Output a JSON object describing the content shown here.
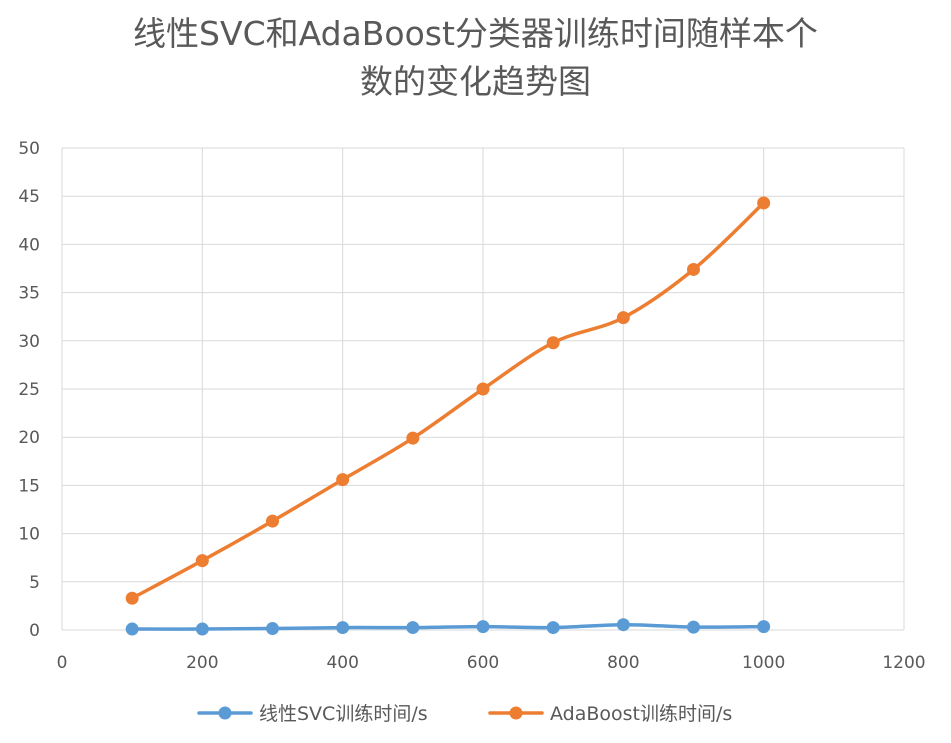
{
  "chart_data": {
    "type": "line",
    "title_lines": [
      "线性SVC和AdaBoost分类器训练时间随样本个",
      "数的变化趋势图"
    ],
    "xlabel": "",
    "ylabel": "",
    "xlim": [
      0,
      1200
    ],
    "ylim": [
      0,
      50
    ],
    "x_ticks": [
      0,
      200,
      400,
      600,
      800,
      1000,
      1200
    ],
    "y_ticks": [
      0,
      5,
      10,
      15,
      20,
      25,
      30,
      35,
      40,
      45,
      50
    ],
    "grid": true,
    "legend_position": "bottom",
    "series": [
      {
        "name": "线性SVC训练时间/s",
        "color": "#5B9BD5",
        "x": [
          100,
          200,
          300,
          400,
          500,
          600,
          700,
          800,
          900,
          1000
        ],
        "y": [
          0.1,
          0.1,
          0.15,
          0.25,
          0.25,
          0.35,
          0.25,
          0.55,
          0.3,
          0.35
        ]
      },
      {
        "name": "AdaBoost训练时间/s",
        "color": "#ED7D31",
        "x": [
          100,
          200,
          300,
          400,
          500,
          600,
          700,
          800,
          900,
          1000
        ],
        "y": [
          3.3,
          7.2,
          11.3,
          15.6,
          19.9,
          25.0,
          29.8,
          32.4,
          37.4,
          44.3
        ]
      }
    ]
  }
}
